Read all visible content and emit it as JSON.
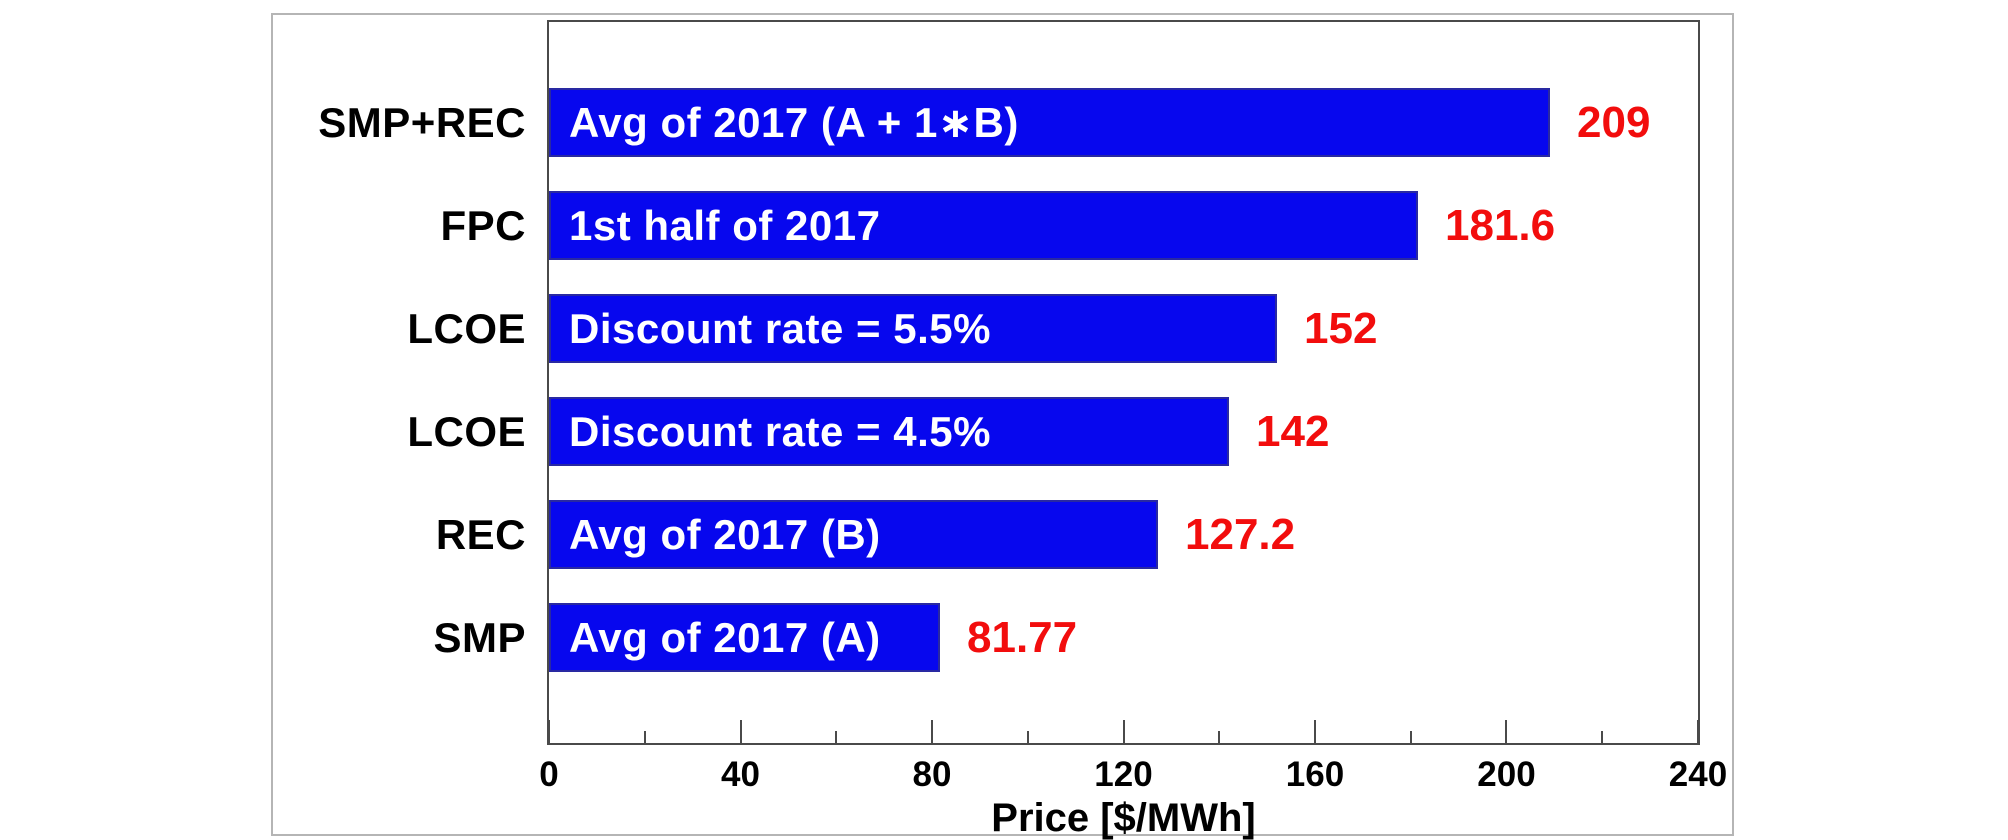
{
  "chart_data": {
    "type": "bar",
    "orientation": "horizontal",
    "title": "",
    "xlabel": "Price [$/MWh]",
    "ylabel": "",
    "xlim": [
      0,
      240
    ],
    "grid": false,
    "legend": false,
    "categories": [
      "SMP+REC",
      "FPC",
      "LCOE",
      "LCOE",
      "REC",
      "SMP"
    ],
    "series": [
      {
        "name": "Price",
        "values": [
          209,
          181.6,
          152,
          142,
          127.2,
          81.77
        ]
      }
    ],
    "bar_inner_labels": [
      "Avg of 2017 (A + 1∗B)",
      "1st half of 2017",
      "Discount rate = 5.5%",
      "Discount rate = 4.5%",
      "Avg of 2017 (B)",
      "Avg of 2017 (A)"
    ],
    "value_labels": [
      "209",
      "181.6",
      "152",
      "142",
      "127.2",
      "81.77"
    ],
    "x_major_ticks": [
      "0",
      "40",
      "80",
      "120",
      "160",
      "200",
      "240"
    ],
    "x_major_tick_values": [
      0,
      40,
      80,
      120,
      160,
      200,
      240
    ],
    "x_minor_tick_values": [
      20,
      60,
      100,
      140,
      180,
      220
    ],
    "bar_color": "#0707ee",
    "value_label_color": "#f20d0d",
    "bar_text_color": "#ffffff",
    "axis_color": "#4a4a4a"
  }
}
